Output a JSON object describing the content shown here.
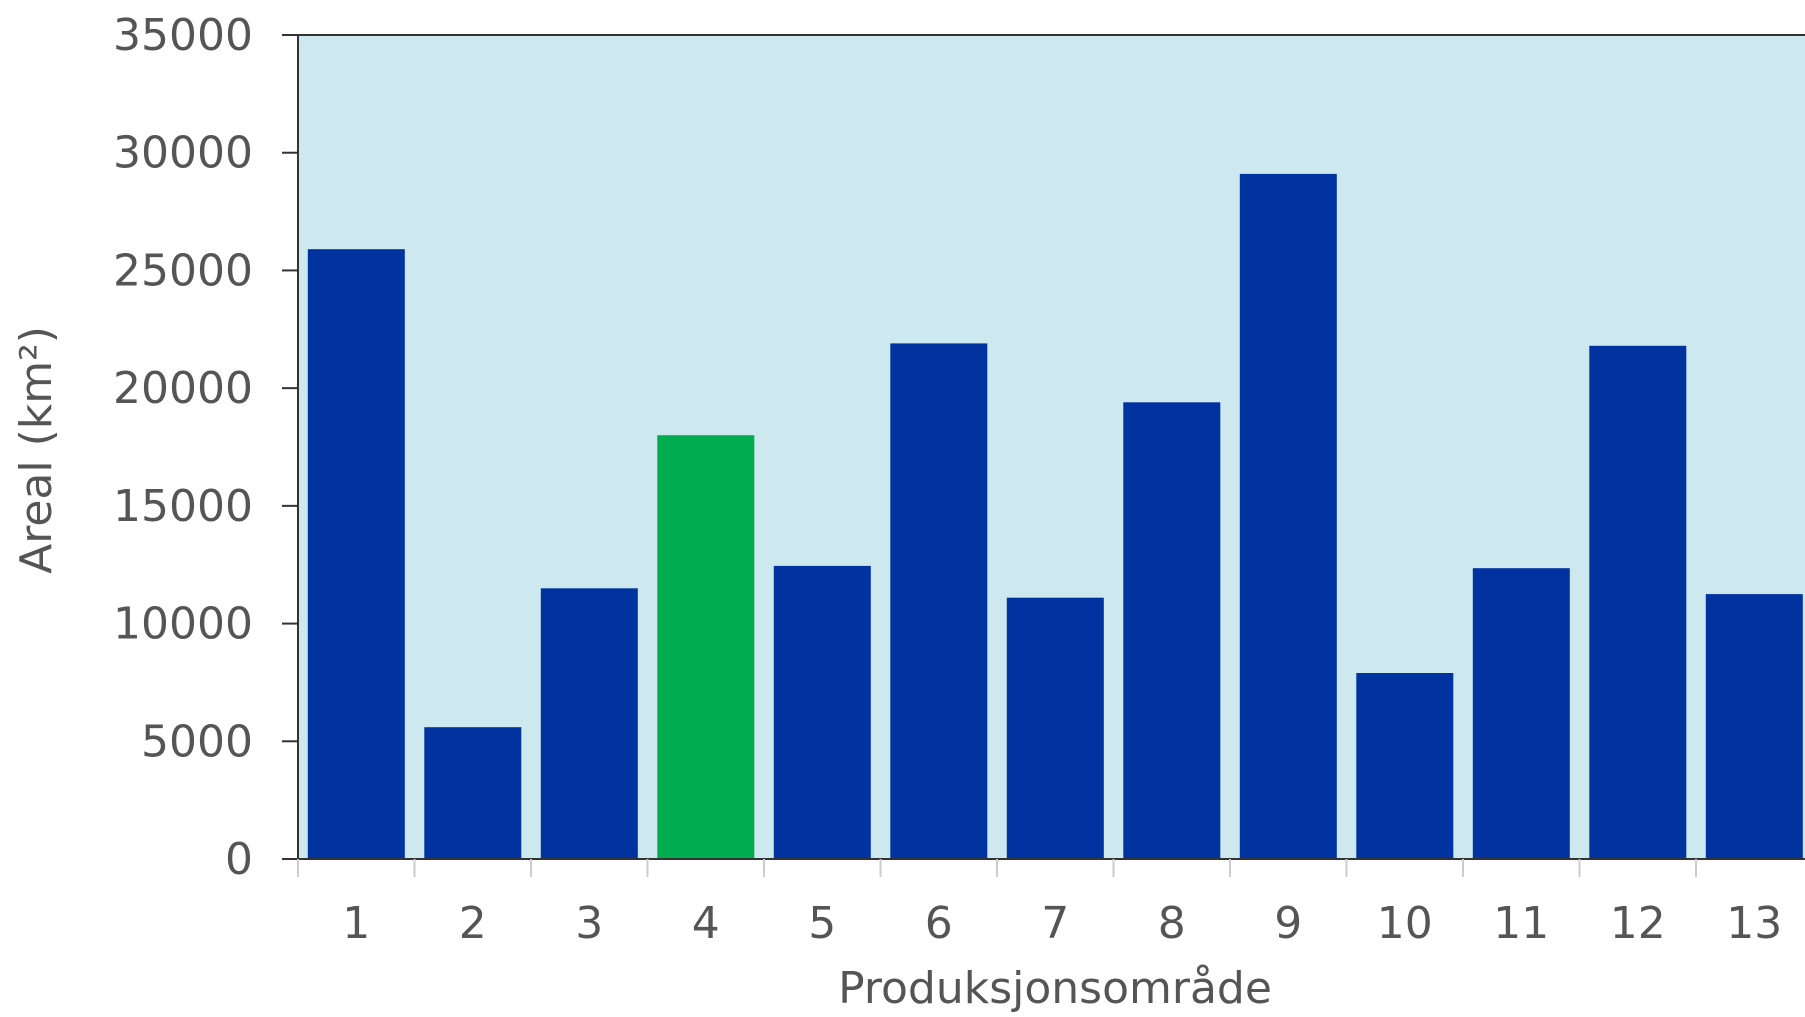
{
  "chart_data": {
    "type": "bar",
    "categories": [
      "1",
      "2",
      "3",
      "4",
      "5",
      "6",
      "7",
      "8",
      "9",
      "10",
      "11",
      "12",
      "13"
    ],
    "values": [
      25900,
      5600,
      11500,
      18000,
      12450,
      21900,
      11100,
      19400,
      29100,
      7900,
      12350,
      21800,
      11250
    ],
    "highlight_index": 3,
    "xlabel": "Produksjonsområde",
    "ylabel": "Areal (km²)",
    "ylim": [
      0,
      35000
    ],
    "yticks": [
      0,
      5000,
      10000,
      15000,
      20000,
      25000,
      30000,
      35000
    ],
    "grid": false,
    "legend": "none",
    "colors": {
      "plot_background": "#cde8ee",
      "bar": "#0033a0",
      "highlight_bar": "#00ad4e",
      "axis": "#333333",
      "text": "#555555"
    }
  }
}
